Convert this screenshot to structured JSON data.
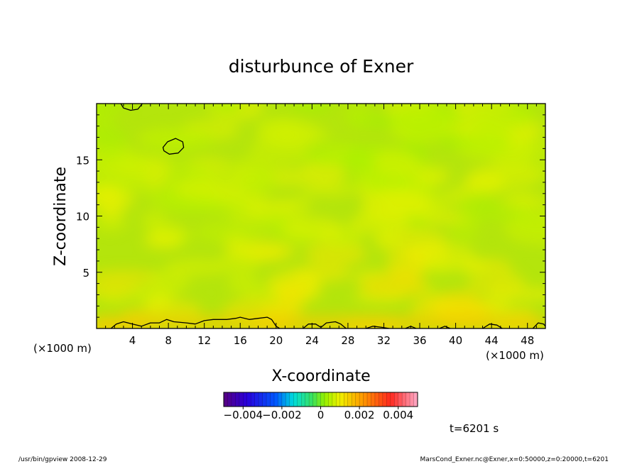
{
  "chart_data": {
    "type": "heatmap",
    "title": "disturbunce of Exner",
    "xlabel": "X-coordinate",
    "ylabel": "Z-coordinate",
    "x_unit": "(×1000 m)",
    "y_unit": "(×1000 m)",
    "xlim": [
      0,
      50
    ],
    "ylim": [
      0,
      20
    ],
    "x_ticks": [
      4,
      8,
      12,
      16,
      20,
      24,
      28,
      32,
      36,
      40,
      44,
      48
    ],
    "y_ticks": [
      5,
      10,
      15
    ],
    "colorbar": {
      "min": -0.005,
      "max": 0.005,
      "tick_values": [
        -0.004,
        -0.002,
        0,
        0.002,
        0.004
      ],
      "tick_labels": [
        "−0.004",
        "−0.002",
        "0",
        "0.002",
        "0.004"
      ]
    },
    "field_range": [
      0.0,
      0.0015
    ],
    "contours": [
      {
        "closed": true,
        "points": [
          [
            7.4,
            16.1
          ],
          [
            7.9,
            16.6
          ],
          [
            8.8,
            16.9
          ],
          [
            9.6,
            16.6
          ],
          [
            9.7,
            16.1
          ],
          [
            9.1,
            15.6
          ],
          [
            8.1,
            15.5
          ],
          [
            7.5,
            15.8
          ]
        ]
      },
      {
        "closed": false,
        "points": [
          [
            2.7,
            20.0
          ],
          [
            3.0,
            19.6
          ],
          [
            3.8,
            19.4
          ],
          [
            4.6,
            19.5
          ],
          [
            5.1,
            20.0
          ]
        ]
      },
      {
        "closed": false,
        "points": [
          [
            1.6,
            0.0
          ],
          [
            2.2,
            0.4
          ],
          [
            3.0,
            0.6
          ],
          [
            4.0,
            0.4
          ],
          [
            5.0,
            0.2
          ],
          [
            6.0,
            0.5
          ],
          [
            7.0,
            0.5
          ],
          [
            7.8,
            0.8
          ],
          [
            8.6,
            0.6
          ],
          [
            10.0,
            0.5
          ],
          [
            11.0,
            0.4
          ],
          [
            12.0,
            0.7
          ],
          [
            13.0,
            0.8
          ],
          [
            14.5,
            0.8
          ],
          [
            15.5,
            0.9
          ],
          [
            16.0,
            1.0
          ],
          [
            17.0,
            0.8
          ],
          [
            18.0,
            0.9
          ],
          [
            19.0,
            1.0
          ],
          [
            19.5,
            0.8
          ],
          [
            20.0,
            0.2
          ],
          [
            20.4,
            0.0
          ]
        ]
      },
      {
        "closed": false,
        "points": [
          [
            23.0,
            0.0
          ],
          [
            23.6,
            0.4
          ],
          [
            24.4,
            0.4
          ],
          [
            25.0,
            0.1
          ],
          [
            25.6,
            0.5
          ],
          [
            26.6,
            0.6
          ],
          [
            27.2,
            0.4
          ],
          [
            27.8,
            0.0
          ]
        ]
      },
      {
        "closed": false,
        "points": [
          [
            30.0,
            0.0
          ],
          [
            30.8,
            0.2
          ],
          [
            31.8,
            0.1
          ],
          [
            32.6,
            0.0
          ]
        ]
      },
      {
        "closed": false,
        "points": [
          [
            34.4,
            0.0
          ],
          [
            35.0,
            0.2
          ],
          [
            35.6,
            0.0
          ]
        ]
      },
      {
        "closed": false,
        "points": [
          [
            38.2,
            0.0
          ],
          [
            38.8,
            0.2
          ],
          [
            39.4,
            0.0
          ]
        ]
      },
      {
        "closed": false,
        "points": [
          [
            43.0,
            0.0
          ],
          [
            43.8,
            0.4
          ],
          [
            44.6,
            0.3
          ],
          [
            45.2,
            0.0
          ]
        ]
      },
      {
        "closed": false,
        "points": [
          [
            48.6,
            0.0
          ],
          [
            49.2,
            0.5
          ],
          [
            49.8,
            0.4
          ],
          [
            50.0,
            0.2
          ]
        ]
      }
    ]
  },
  "annotations": {
    "time": "t=6201 s",
    "footer_left": "/usr/bin/gpview   2008-12-29",
    "footer_right": "MarsCond_Exner.nc@Exner,x=0:50000,z=0:20000,t=6201"
  }
}
